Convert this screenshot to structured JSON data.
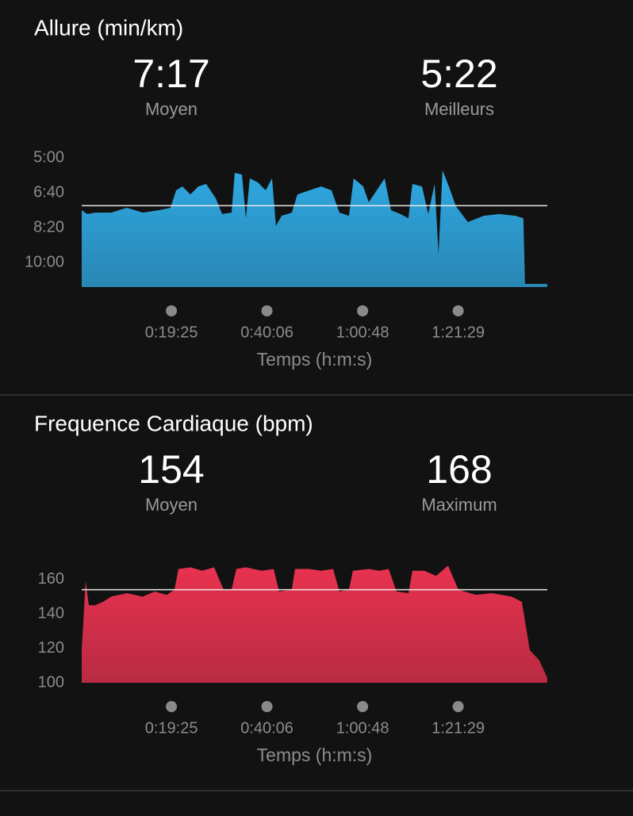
{
  "chart_data": [
    {
      "type": "area",
      "title": "Allure (min/km)",
      "stats": [
        {
          "value": 437,
          "label": "7:17",
          "caption": "Moyen"
        },
        {
          "value": 322,
          "label": "5:22",
          "caption": "Meilleurs"
        }
      ],
      "xlabel": "Temps (h:m:s)",
      "x": [
        0,
        72,
        175,
        381,
        587,
        793,
        999,
        1153,
        1226,
        1308,
        1411,
        1514,
        1617,
        1741,
        1823,
        1946,
        1988,
        2081,
        2132,
        2183,
        2286,
        2389,
        2472,
        2523,
        2595,
        2729,
        2801,
        2956,
        3110,
        3244,
        3347,
        3471,
        3532,
        3656,
        3728,
        3831,
        3934,
        4017,
        4140,
        4243,
        4295,
        4419,
        4501,
        4583,
        4634,
        4686,
        4768,
        4861,
        5015,
        5221,
        5427,
        5633,
        5736,
        5757,
        6046
      ],
      "series": [
        {
          "color": "#2fa8e2",
          "values": [
            450,
            461,
            457,
            457,
            443,
            457,
            450,
            443,
            393,
            382,
            405,
            382,
            375,
            416,
            461,
            457,
            343,
            348,
            473,
            359,
            370,
            393,
            359,
            495,
            466,
            457,
            405,
            393,
            382,
            393,
            457,
            466,
            359,
            382,
            427,
            393,
            359,
            450,
            461,
            473,
            375,
            382,
            461,
            375,
            575,
            336,
            382,
            439,
            484,
            466,
            461,
            466,
            473,
            661,
            661
          ]
        }
      ],
      "xlim": [
        0,
        6047
      ],
      "xticks": [
        {
          "value": 1165,
          "label": "0:19:25"
        },
        {
          "value": 2406,
          "label": "0:40:06"
        },
        {
          "value": 3648,
          "label": "1:00:48"
        },
        {
          "value": 4889,
          "label": "1:21:29"
        }
      ],
      "ylim": [
        670,
        300
      ],
      "yticks": [
        {
          "value": 300,
          "label": "5:00"
        },
        {
          "value": 400,
          "label": "6:40"
        },
        {
          "value": 500,
          "label": "8:20"
        },
        {
          "value": 600,
          "label": "10:00"
        }
      ]
    },
    {
      "type": "area",
      "title": "Frequence Cardiaque (bpm)",
      "stats": [
        {
          "value": 154,
          "caption": "Moyen"
        },
        {
          "value": 168,
          "caption": "Maximum"
        }
      ],
      "xlabel": "Temps (h:m:s)",
      "x": [
        0,
        51,
        93,
        175,
        278,
        381,
        587,
        793,
        947,
        1102,
        1205,
        1256,
        1411,
        1565,
        1720,
        1843,
        1946,
        2008,
        2132,
        2338,
        2492,
        2564,
        2729,
        2770,
        2956,
        3110,
        3265,
        3347,
        3471,
        3522,
        3728,
        3862,
        3986,
        4089,
        4243,
        4295,
        4449,
        4603,
        4758,
        4892,
        5118,
        5324,
        5582,
        5716,
        5819,
        5942,
        6045
      ],
      "series": [
        {
          "color": "#e8324f",
          "values": [
            119,
            159,
            145,
            145,
            147,
            150,
            152,
            150,
            153,
            151,
            154,
            166,
            167,
            165,
            167,
            154,
            154,
            166,
            167,
            165,
            166,
            153,
            154,
            166,
            166,
            165,
            166,
            153,
            154,
            165,
            166,
            165,
            166,
            153,
            152,
            165,
            165,
            162,
            168,
            154,
            151,
            152,
            150,
            147,
            119,
            113,
            103
          ]
        }
      ],
      "xlim": [
        0,
        6047
      ],
      "xticks": [
        {
          "value": 1165,
          "label": "0:19:25"
        },
        {
          "value": 2406,
          "label": "0:40:06"
        },
        {
          "value": 3648,
          "label": "1:00:48"
        },
        {
          "value": 4889,
          "label": "1:21:29"
        }
      ],
      "ylim": [
        100,
        175
      ],
      "yticks": [
        100,
        120,
        140,
        160
      ]
    }
  ]
}
